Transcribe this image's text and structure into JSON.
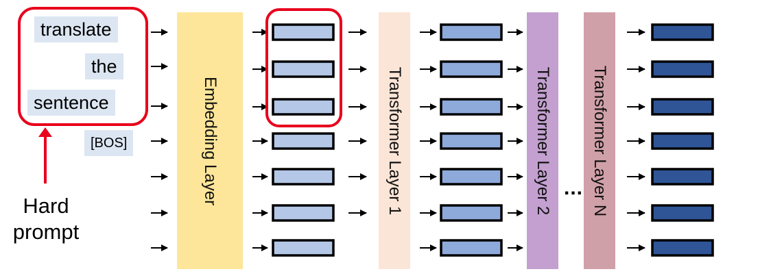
{
  "tokens": [
    "translate",
    "the",
    "sentence",
    "[BOS]"
  ],
  "layers": {
    "embedding": "Embedding Layer",
    "transformer_1": "Transformer Layer 1",
    "transformer_2": "Transformer Layer 2",
    "transformer_n": "Transformer Layer N"
  },
  "ellipsis": "...",
  "prompt_label": {
    "line1": "Hard",
    "line2": "prompt"
  },
  "colors": {
    "token_bg": "#dce6f2",
    "embedding": "#fde699",
    "transformer_1": "#fbe5d6",
    "transformer_2": "#c3a0d0",
    "transformer_n": "#d0a0a8",
    "vector_light": "#b4c7e7",
    "vector_mid": "#8eaadb",
    "vector_dark": "#2f5597",
    "highlight": "#e8001c"
  }
}
